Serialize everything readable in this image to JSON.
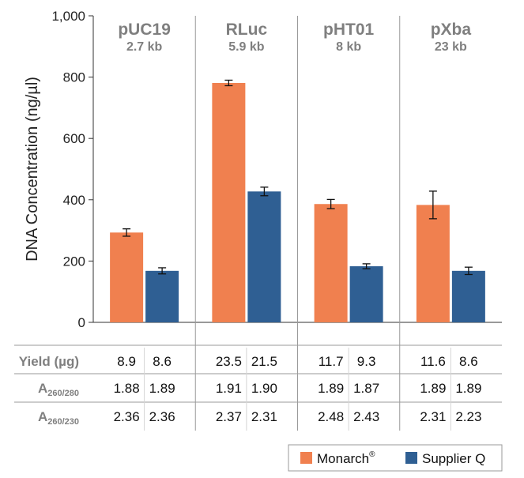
{
  "chart_data": {
    "type": "bar",
    "title": "",
    "xlabel": "",
    "ylabel": "DNA Concentration (ng/µl)",
    "ylim": [
      0,
      1000
    ],
    "yticks": [
      0,
      200,
      400,
      600,
      800,
      1000
    ],
    "ytick_labels": [
      "0",
      "200",
      "400",
      "600",
      "800",
      "1,000"
    ],
    "grid": false,
    "categories": [
      "pUC19",
      "RLuc",
      "pHT01",
      "pXba"
    ],
    "category_sizes": [
      "2.7 kb",
      "5.9 kb",
      "8 kb",
      "23 kb"
    ],
    "series": [
      {
        "name": "Monarch",
        "name_superscript": "®",
        "color": "#f0804f",
        "values": [
          293,
          781,
          386,
          383
        ],
        "error": [
          12,
          9,
          15,
          45
        ]
      },
      {
        "name": "Supplier Q",
        "color": "#2f5f93",
        "values": [
          168,
          427,
          183,
          168
        ],
        "error": [
          10,
          14,
          8,
          12
        ]
      }
    ],
    "legend_position": "bottom-right",
    "table": {
      "rows": [
        {
          "label": "Yield (µg)",
          "label_sub": "",
          "values": [
            "8.9",
            "8.6",
            "23.5",
            "21.5",
            "11.7",
            "9.3",
            "11.6",
            "8.6"
          ]
        },
        {
          "label": "A",
          "label_sub": "260/280",
          "values": [
            "1.88",
            "1.89",
            "1.91",
            "1.90",
            "1.89",
            "1.87",
            "1.89",
            "1.89"
          ]
        },
        {
          "label": "A",
          "label_sub": "260/230",
          "values": [
            "2.36",
            "2.36",
            "2.37",
            "2.31",
            "2.48",
            "2.43",
            "2.31",
            "2.23"
          ]
        }
      ]
    }
  }
}
